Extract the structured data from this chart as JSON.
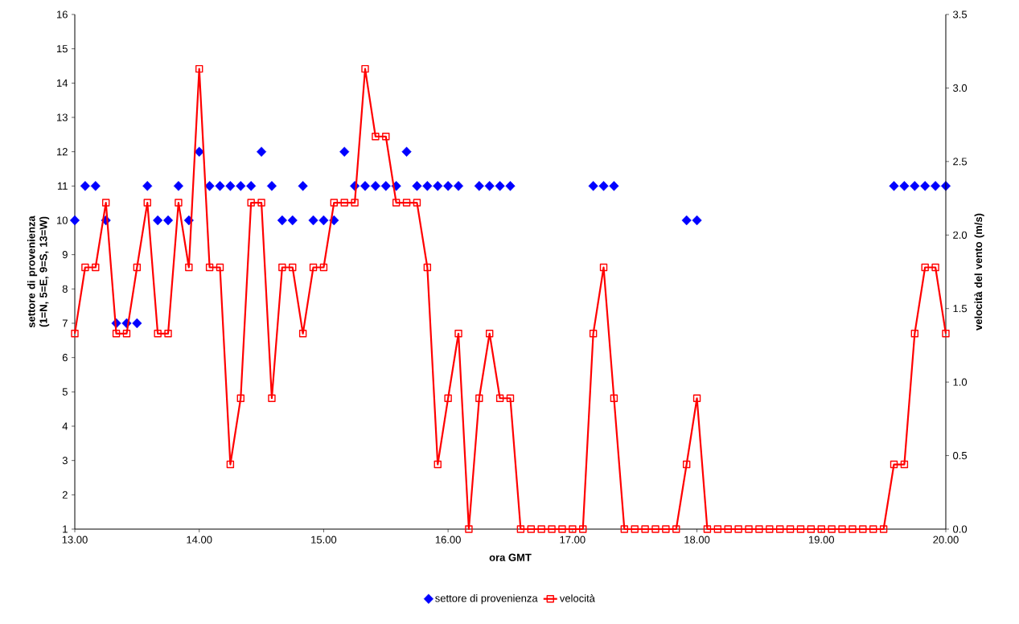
{
  "chart_data": {
    "type": "line",
    "xlabel": "ora GMT",
    "ylabel": "settore di provenienza (1=N, 5=E, 9=S, 13=W)",
    "y2label": "velocità del vento (m/s)",
    "x": [
      13,
      13.0833,
      13.1667,
      13.25,
      13.3333,
      13.4167,
      13.5,
      13.5833,
      13.6667,
      13.75,
      13.8333,
      13.9167,
      14,
      14.0833,
      14.1667,
      14.25,
      14.3333,
      14.4167,
      14.5,
      14.5833,
      14.6667,
      14.75,
      14.8333,
      14.9167,
      15,
      15.0833,
      15.1667,
      15.25,
      15.3333,
      15.4167,
      15.5,
      15.5833,
      15.6667,
      15.75,
      15.8333,
      15.9167,
      16,
      16.0833,
      16.1667,
      16.25,
      16.3333,
      16.4167,
      16.5,
      16.5833,
      16.6667,
      16.75,
      16.8333,
      16.9167,
      17,
      17.0833,
      17.1667,
      17.25,
      17.3333,
      17.4167,
      17.5,
      17.5833,
      17.6667,
      17.75,
      17.8333,
      17.9167,
      18,
      18.0833,
      18.1667,
      18.25,
      18.3333,
      18.4167,
      18.5,
      18.5833,
      18.6667,
      18.75,
      18.8333,
      18.9167,
      19,
      19.0833,
      19.1667,
      19.25,
      19.3333,
      19.4167,
      19.5,
      19.5833,
      19.6667,
      19.75,
      19.8333,
      19.9167,
      20
    ],
    "series": [
      {
        "name": "settore di provenienza",
        "type": "scatter",
        "marker": "diamond",
        "color": "#0000ff",
        "values": [
          10,
          11,
          11,
          10,
          7,
          7,
          7,
          11,
          10,
          10,
          11,
          10,
          12,
          11,
          11,
          11,
          11,
          11,
          12,
          11,
          10,
          10,
          11,
          10,
          10,
          10,
          12,
          11,
          11,
          11,
          11,
          11,
          12,
          11,
          11,
          11,
          11,
          11,
          null,
          11,
          11,
          11,
          11,
          null,
          null,
          null,
          null,
          null,
          null,
          null,
          11,
          11,
          11,
          null,
          null,
          null,
          null,
          null,
          null,
          10,
          10,
          null,
          null,
          null,
          null,
          null,
          null,
          null,
          null,
          null,
          null,
          null,
          null,
          null,
          null,
          null,
          null,
          null,
          null,
          11,
          11,
          11,
          11,
          11,
          11
        ]
      },
      {
        "name": "velocità",
        "marker": "square",
        "axis": "y2",
        "color": "#ff0000",
        "values": [
          1.33,
          1.78,
          1.78,
          2.22,
          1.33,
          1.33,
          1.78,
          2.22,
          1.33,
          1.33,
          2.22,
          1.78,
          3.13,
          1.78,
          1.78,
          0.44,
          0.89,
          2.22,
          2.22,
          0.89,
          1.78,
          1.78,
          1.33,
          1.78,
          1.78,
          2.22,
          2.22,
          2.22,
          3.13,
          2.67,
          2.67,
          2.22,
          2.22,
          2.22,
          1.78,
          0.44,
          0.89,
          1.33,
          0,
          0.89,
          1.33,
          0.89,
          0.89,
          0,
          0,
          0,
          0,
          0,
          0,
          0,
          1.33,
          1.78,
          0.89,
          0,
          0,
          0,
          0,
          0,
          0,
          0.44,
          0.89,
          0,
          0,
          0,
          0,
          0,
          0,
          0,
          0,
          0,
          0,
          0,
          0,
          0,
          0,
          0,
          0,
          0,
          0,
          0.44,
          0.44,
          1.33,
          1.78,
          1.78,
          1.33
        ]
      }
    ],
    "xlim": [
      13,
      20
    ],
    "xticks": [
      {
        "value": 13,
        "label": "13.00"
      },
      {
        "value": 14,
        "label": "14.00"
      },
      {
        "value": 15,
        "label": "15.00"
      },
      {
        "value": 16,
        "label": "16.00"
      },
      {
        "value": 17,
        "label": "17.00"
      },
      {
        "value": 18,
        "label": "18.00"
      },
      {
        "value": 19,
        "label": "19.00"
      },
      {
        "value": 20,
        "label": "20.00"
      }
    ],
    "ylim": [
      1,
      16
    ],
    "yticks": [
      1,
      2,
      3,
      4,
      5,
      6,
      7,
      8,
      9,
      10,
      11,
      12,
      13,
      14,
      15,
      16
    ],
    "y2lim": [
      0,
      3.5
    ],
    "y2ticks": [
      {
        "value": 0,
        "label": "0.0"
      },
      {
        "value": 0.5,
        "label": "0.5"
      },
      {
        "value": 1,
        "label": "1.0"
      },
      {
        "value": 1.5,
        "label": "1.5"
      },
      {
        "value": 2,
        "label": "2.0"
      },
      {
        "value": 2.5,
        "label": "2.5"
      },
      {
        "value": 3,
        "label": "3.0"
      },
      {
        "value": 3.5,
        "label": "3.5"
      }
    ],
    "legend": "bottom"
  }
}
